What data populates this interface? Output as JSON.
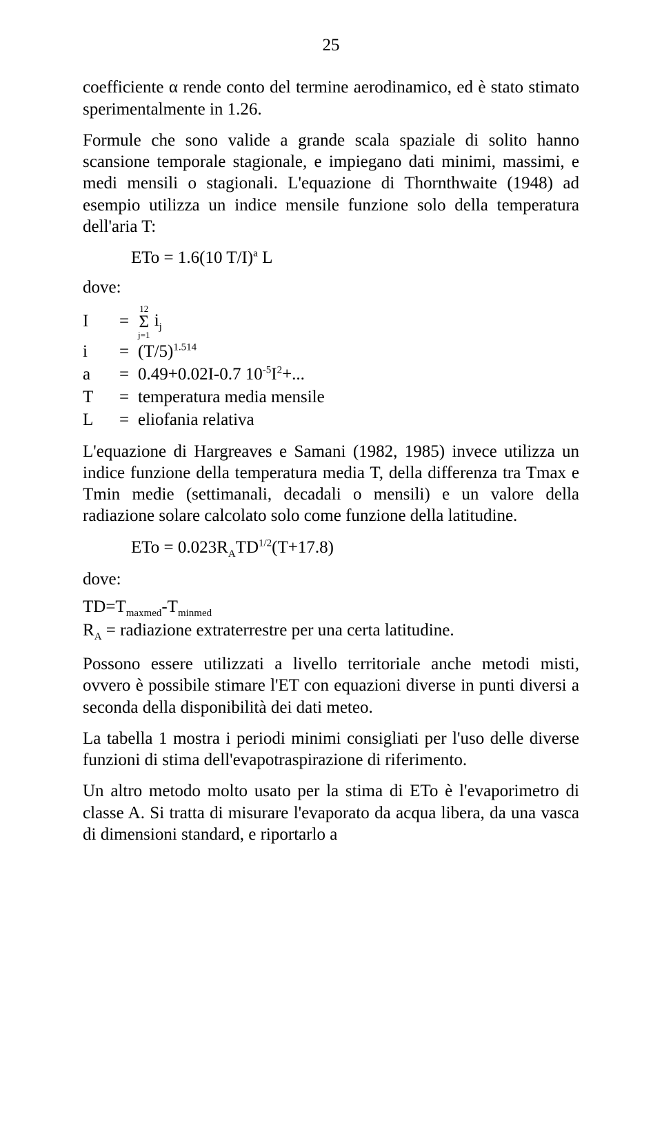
{
  "page_number": "25",
  "para1": "coefficiente α rende conto del termine aerodinamico, ed è stato stimato sperimentalmente in 1.26.",
  "para2": "Formule che sono valide a grande scala spaziale di solito hanno scansione temporale stagionale, e impiegano dati minimi, massimi, e medi mensili o stagionali. L'equazione di Thornthwaite (1948) ad esempio utilizza un indice mensile funzione solo della temperatura dell'aria T:",
  "eq1_pre": "ETo = 1.6(10 T/I)",
  "eq1_sup": "a",
  "eq1_post": " L",
  "dove": "dove:",
  "defs": {
    "I": {
      "sym": "I",
      "eq": "="
    },
    "I_sigma_top": "12",
    "I_sigma_mid": "Σ",
    "I_sigma_bot": "j=1",
    "I_after": " i",
    "I_after_sub": "j",
    "i": {
      "sym": "i",
      "eq": "=",
      "pre": "(T/5)",
      "sup": "1.514"
    },
    "a": {
      "sym": "a",
      "eq": "=",
      "pre": "0.49+0.02I-0.7 10",
      "sup": "-5",
      "mid": "I",
      "sup2": "2",
      "post": "+..."
    },
    "T": {
      "sym": "T",
      "eq": "=",
      "val": "temperatura media mensile"
    },
    "L": {
      "sym": "L",
      "eq": "=",
      "val": "eliofania relativa"
    }
  },
  "para3": "L'equazione di Hargreaves e Samani (1982, 1985) invece utilizza un indice funzione della temperatura media T, della differenza tra Tmax e Tmin medie (settimanali, decadali o mensili) e un valore della radiazione solare calcolato solo come funzione della latitudine.",
  "eq2_pre": "ETo = 0.023R",
  "eq2_sub1": "A",
  "eq2_mid": "TD",
  "eq2_sup": "1/2",
  "eq2_post": "(T+17.8)",
  "td_line_pre": "TD=T",
  "td_line_sub1": "maxmed",
  "td_line_mid": "-T",
  "td_line_sub2": "minmed",
  "ra_line_pre": "R",
  "ra_line_sub": "A",
  "ra_line_post": " = radiazione extraterrestre per una certa latitudine.",
  "para4": "Possono essere utilizzati a livello territoriale anche metodi misti, ovvero è possibile stimare l'ET con equazioni diverse in punti diversi a seconda della disponibilità dei dati meteo.",
  "para5": "La tabella 1 mostra i periodi minimi consigliati per l'uso delle diverse funzioni di stima dell'evapotraspirazione di riferimento.",
  "para6": "Un altro metodo molto usato per la stima di ETo è l'evaporimetro di classe A. Si tratta di misurare l'evaporato da acqua libera, da una vasca di dimensioni standard, e riportarlo a"
}
